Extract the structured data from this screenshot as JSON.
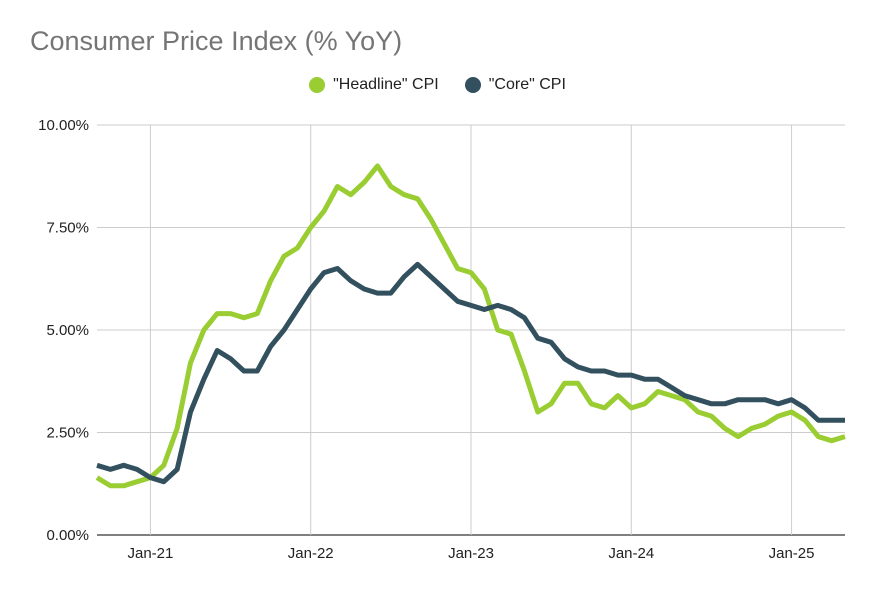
{
  "chart_data": {
    "type": "line",
    "title": "Consumer Price Index (% YoY)",
    "xlabel": "",
    "ylabel": "",
    "ylim": [
      0,
      10
    ],
    "y_ticks": [
      "0.00%",
      "2.50%",
      "5.00%",
      "7.50%",
      "10.00%"
    ],
    "y_tick_values": [
      0,
      2.5,
      5,
      7.5,
      10
    ],
    "x_ticks": [
      "Jan-21",
      "Jan-22",
      "Jan-23",
      "Jan-24",
      "Jan-25"
    ],
    "x_tick_dates": [
      "2021-01",
      "2022-01",
      "2023-01",
      "2024-01",
      "2025-01"
    ],
    "x_range": [
      "2020-09",
      "2025-05"
    ],
    "grid": true,
    "legend_position": "top",
    "x": [
      "2020-09",
      "2020-10",
      "2020-11",
      "2020-12",
      "2021-01",
      "2021-02",
      "2021-03",
      "2021-04",
      "2021-05",
      "2021-06",
      "2021-07",
      "2021-08",
      "2021-09",
      "2021-10",
      "2021-11",
      "2021-12",
      "2022-01",
      "2022-02",
      "2022-03",
      "2022-04",
      "2022-05",
      "2022-06",
      "2022-07",
      "2022-08",
      "2022-09",
      "2022-10",
      "2022-11",
      "2022-12",
      "2023-01",
      "2023-02",
      "2023-03",
      "2023-04",
      "2023-05",
      "2023-06",
      "2023-07",
      "2023-08",
      "2023-09",
      "2023-10",
      "2023-11",
      "2023-12",
      "2024-01",
      "2024-02",
      "2024-03",
      "2024-04",
      "2024-05",
      "2024-06",
      "2024-07",
      "2024-08",
      "2024-09",
      "2024-10",
      "2024-11",
      "2024-12",
      "2025-01",
      "2025-02",
      "2025-03",
      "2025-04",
      "2025-05"
    ],
    "series": [
      {
        "name": "\"Headline\" CPI",
        "color": "#9ACD32",
        "values": [
          1.4,
          1.2,
          1.2,
          1.3,
          1.4,
          1.7,
          2.6,
          4.2,
          5.0,
          5.4,
          5.4,
          5.3,
          5.4,
          6.2,
          6.8,
          7.0,
          7.5,
          7.9,
          8.5,
          8.3,
          8.6,
          9.0,
          8.5,
          8.3,
          8.2,
          7.7,
          7.1,
          6.5,
          6.4,
          6.0,
          5.0,
          4.9,
          4.0,
          3.0,
          3.2,
          3.7,
          3.7,
          3.2,
          3.1,
          3.4,
          3.1,
          3.2,
          3.5,
          3.4,
          3.3,
          3.0,
          2.9,
          2.6,
          2.4,
          2.6,
          2.7,
          2.9,
          3.0,
          2.8,
          2.4,
          2.3,
          2.4
        ]
      },
      {
        "name": "\"Core\" CPI",
        "color": "#33505F",
        "values": [
          1.7,
          1.6,
          1.7,
          1.6,
          1.4,
          1.3,
          1.6,
          3.0,
          3.8,
          4.5,
          4.3,
          4.0,
          4.0,
          4.6,
          5.0,
          5.5,
          6.0,
          6.4,
          6.5,
          6.2,
          6.0,
          5.9,
          5.9,
          6.3,
          6.6,
          6.3,
          6.0,
          5.7,
          5.6,
          5.5,
          5.6,
          5.5,
          5.3,
          4.8,
          4.7,
          4.3,
          4.1,
          4.0,
          4.0,
          3.9,
          3.9,
          3.8,
          3.8,
          3.6,
          3.4,
          3.3,
          3.2,
          3.2,
          3.3,
          3.3,
          3.3,
          3.2,
          3.3,
          3.1,
          2.8,
          2.8,
          2.8
        ]
      }
    ]
  }
}
